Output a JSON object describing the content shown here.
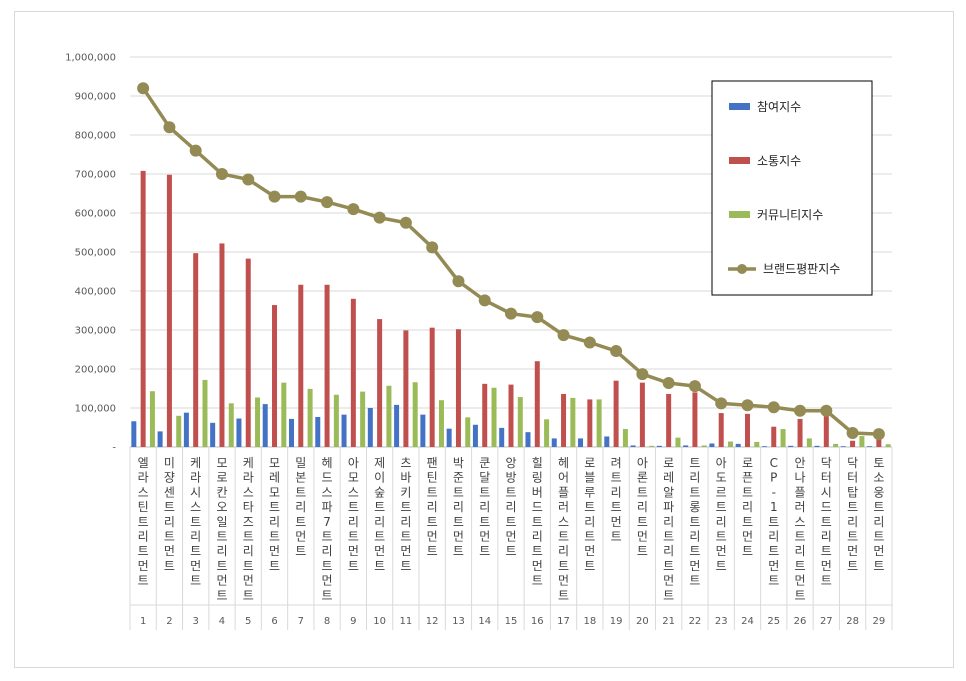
{
  "chart_data": {
    "type": "bar",
    "title": "",
    "xlabel": "",
    "ylabel": "",
    "ylim": [
      0,
      1000000
    ],
    "yticks": [
      "-",
      "100,000",
      "200,000",
      "300,000",
      "400,000",
      "500,000",
      "600,000",
      "700,000",
      "800,000",
      "900,000",
      "1,000,000"
    ],
    "categories": [
      "엘라스틴 트리트먼트",
      "미쟝센 트리트먼트",
      "케라시스 트리트먼트",
      "모로칸오일 트리트먼트",
      "케라스타즈 트리트먼트",
      "모레모 트리트먼트",
      "밀본 트리트먼트",
      "헤드스파7 트리트먼트",
      "아모스 트리트먼트",
      "제이숲 트리트먼트",
      "츠바키 트리트먼트",
      "팬틴 트리트먼트",
      "박준 트리트먼트",
      "쿤달 트리트먼트",
      "앙방 트리트먼트",
      "힐링버드 트리트먼트",
      "헤어플러스 트리트먼트",
      "로블루 트리트먼트",
      "려 트리트먼트",
      "아론 트리트먼트",
      "로레알파리 트리트먼트",
      "트리트롱 트리트먼트",
      "아도르 트리트먼트",
      "로픈 트리트먼트",
      "CP-1 트리트먼트",
      "안나플러스 트리트먼트",
      "닥터시드 트리트먼트",
      "닥터탑 트리트먼트",
      "토소웅 트리트먼트"
    ],
    "ranks": [
      "1",
      "2",
      "3",
      "4",
      "5",
      "6",
      "7",
      "8",
      "9",
      "10",
      "11",
      "12",
      "13",
      "14",
      "15",
      "16",
      "17",
      "18",
      "19",
      "20",
      "21",
      "22",
      "23",
      "24",
      "25",
      "26",
      "27",
      "28",
      "29"
    ],
    "series": [
      {
        "name": "참여지수",
        "type": "bar",
        "color": "#4472c4",
        "values": [
          66000,
          40000,
          88000,
          62000,
          73000,
          110000,
          72000,
          77000,
          83000,
          100000,
          108000,
          83000,
          47000,
          57000,
          49000,
          38000,
          22000,
          22000,
          27000,
          4000,
          3000,
          4000,
          9000,
          8000,
          2000,
          3000,
          3000,
          2000,
          2000
        ]
      },
      {
        "name": "소통지수",
        "type": "bar",
        "color": "#c0504d",
        "values": [
          708000,
          698000,
          497000,
          522000,
          483000,
          364000,
          416000,
          416000,
          380000,
          328000,
          299000,
          306000,
          302000,
          162000,
          160000,
          220000,
          136000,
          122000,
          170000,
          165000,
          136000,
          140000,
          87000,
          85000,
          52000,
          72000,
          80000,
          16000,
          20000
        ]
      },
      {
        "name": "커뮤니티지수",
        "type": "bar",
        "color": "#9bbb59",
        "values": [
          143000,
          80000,
          172000,
          112000,
          127000,
          165000,
          149000,
          134000,
          142000,
          157000,
          166000,
          120000,
          76000,
          152000,
          128000,
          71000,
          126000,
          122000,
          46000,
          3000,
          24000,
          4000,
          14000,
          13000,
          46000,
          22000,
          8000,
          28000,
          7000
        ]
      },
      {
        "name": "브랜드평판지수",
        "type": "line",
        "color": "#948a54",
        "values": [
          920000,
          820000,
          760000,
          700000,
          686000,
          642000,
          642000,
          628000,
          610000,
          588000,
          575000,
          512000,
          425000,
          376000,
          342000,
          333000,
          287000,
          268000,
          246000,
          187000,
          164000,
          156000,
          112000,
          107000,
          102000,
          93000,
          93000,
          36000,
          33000
        ]
      }
    ],
    "legend_position": "top-right",
    "grid": true
  }
}
